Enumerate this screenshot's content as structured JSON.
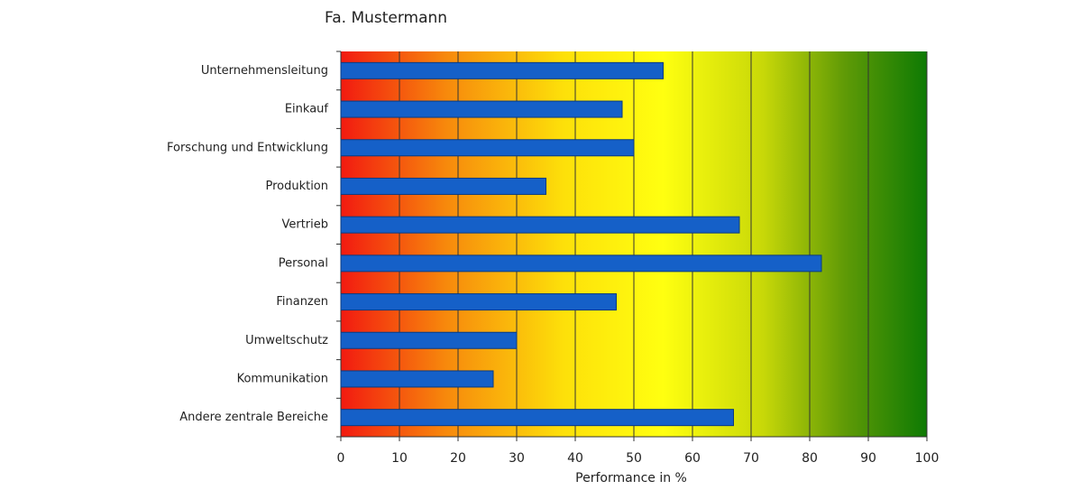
{
  "chart_data": {
    "type": "barh",
    "title": "Fa. Mustermann",
    "x_label": "Performance in %",
    "categories": [
      "Unternehmensleitung",
      "Einkauf",
      "Forschung und Entwicklung",
      "Produktion",
      "Vertrieb",
      "Personal",
      "Finanzen",
      "Umweltschutz",
      "Kommunikation",
      "Andere zentrale Bereiche"
    ],
    "values": [
      55,
      48,
      50,
      35,
      68,
      82,
      47,
      30,
      26,
      67
    ],
    "color": "#1560c8",
    "xlim": [
      0,
      100
    ],
    "xticks": [
      0,
      10,
      20,
      30,
      40,
      50,
      60,
      70,
      80,
      90,
      100
    ],
    "grid": true
  }
}
